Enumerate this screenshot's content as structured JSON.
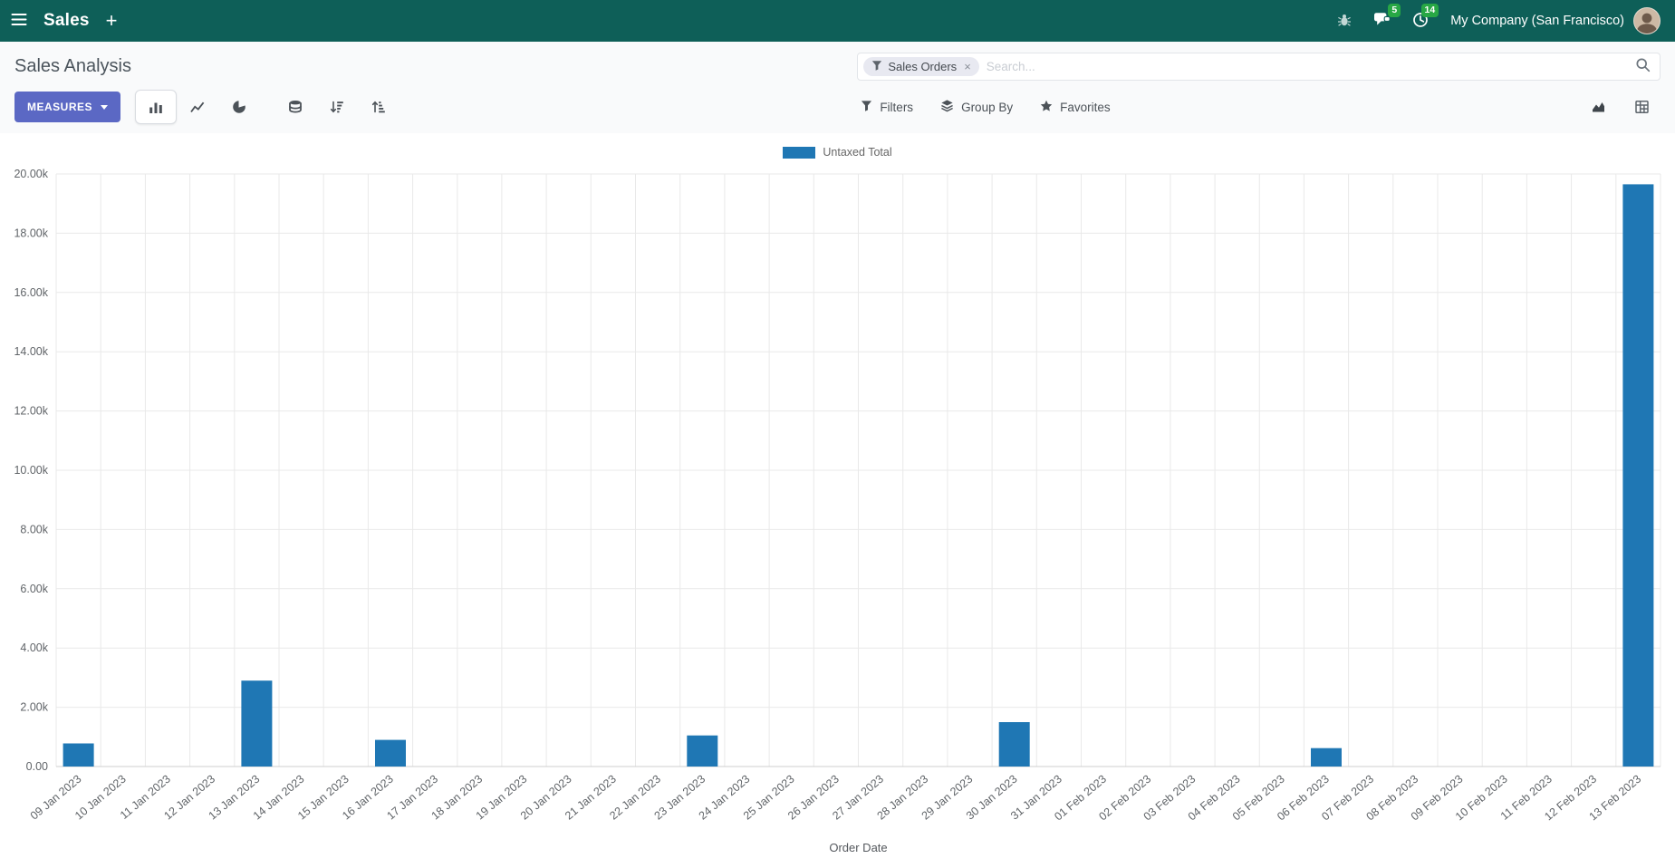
{
  "navbar": {
    "app_name": "Sales",
    "plus_label": "+",
    "company": "My Company (San Francisco)",
    "messages_badge": "5",
    "activities_badge": "14"
  },
  "control_panel": {
    "title": "Sales Analysis",
    "search": {
      "facet_label": "Sales Orders",
      "facet_remove": "×",
      "placeholder": "Search..."
    },
    "measures_label": "MEASURES",
    "filters_label": "Filters",
    "group_by_label": "Group By",
    "favorites_label": "Favorites"
  },
  "chart_data": {
    "type": "bar",
    "title": "",
    "xlabel": "Order Date",
    "ylabel": "",
    "ylim": [
      0,
      20000
    ],
    "grid": true,
    "legend_position": "top",
    "y_ticks": [
      "0.00",
      "2.00k",
      "4.00k",
      "6.00k",
      "8.00k",
      "10.00k",
      "12.00k",
      "14.00k",
      "16.00k",
      "18.00k",
      "20.00k"
    ],
    "categories": [
      "09 Jan 2023",
      "10 Jan 2023",
      "11 Jan 2023",
      "12 Jan 2023",
      "13 Jan 2023",
      "14 Jan 2023",
      "15 Jan 2023",
      "16 Jan 2023",
      "17 Jan 2023",
      "18 Jan 2023",
      "19 Jan 2023",
      "20 Jan 2023",
      "21 Jan 2023",
      "22 Jan 2023",
      "23 Jan 2023",
      "24 Jan 2023",
      "25 Jan 2023",
      "26 Jan 2023",
      "27 Jan 2023",
      "28 Jan 2023",
      "29 Jan 2023",
      "30 Jan 2023",
      "31 Jan 2023",
      "01 Feb 2023",
      "02 Feb 2023",
      "03 Feb 2023",
      "04 Feb 2023",
      "05 Feb 2023",
      "06 Feb 2023",
      "07 Feb 2023",
      "08 Feb 2023",
      "09 Feb 2023",
      "10 Feb 2023",
      "11 Feb 2023",
      "12 Feb 2023",
      "13 Feb 2023"
    ],
    "series": [
      {
        "name": "Untaxed Total",
        "color": "#1f77b4",
        "values": [
          780,
          0,
          0,
          0,
          2900,
          0,
          0,
          900,
          0,
          0,
          0,
          0,
          0,
          0,
          1050,
          0,
          0,
          0,
          0,
          0,
          0,
          1500,
          0,
          0,
          0,
          0,
          0,
          0,
          620,
          0,
          0,
          0,
          0,
          0,
          0,
          19650
        ]
      }
    ]
  }
}
